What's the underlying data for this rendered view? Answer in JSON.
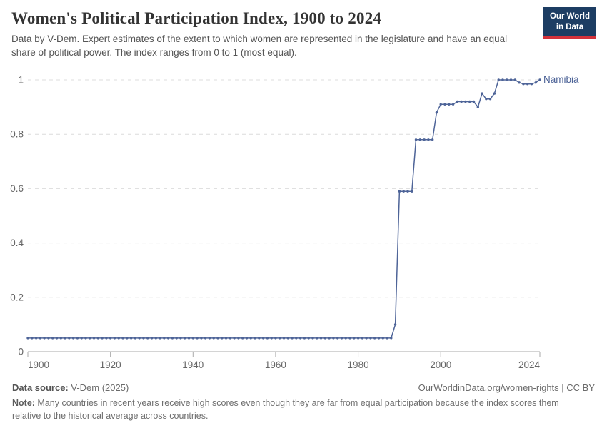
{
  "logo": {
    "line1": "Our World",
    "line2": "in Data",
    "bg_color": "#1d3d63",
    "stripe_color": "#d4323b"
  },
  "footer": {
    "source_label": "Data source:",
    "source_value": " V-Dem (2025)",
    "link_text": "OurWorldinData.org/women-rights | CC BY",
    "note_label": "Note:",
    "note_text": " Many countries in recent years receive high scores even though they are far from equal participation because the index scores them relative to the historical average across countries."
  },
  "chart_data": {
    "type": "line",
    "title": "Women's Political Participation Index, 1900 to 2024",
    "subtitle": "Data by V-Dem. Expert estimates of the extent to which women are represented in the legislature and have an equal share of political power. The index ranges from 0 to 1 (most equal).",
    "xlim": [
      1900,
      2024
    ],
    "ylim": [
      0,
      1
    ],
    "grid": "dashed-horizontal",
    "legend_position": "end-of-line-label",
    "x_ticks": [
      1900,
      1920,
      1940,
      1960,
      1980,
      2000,
      2024
    ],
    "y_ticks": [
      {
        "value": 0,
        "label": "0"
      },
      {
        "value": 0.2,
        "label": "0.2"
      },
      {
        "value": 0.4,
        "label": "0.4"
      },
      {
        "value": 0.6,
        "label": "0.6"
      },
      {
        "value": 0.8,
        "label": "0.8"
      },
      {
        "value": 1,
        "label": "1"
      }
    ],
    "series": [
      {
        "name": "Namibia",
        "color": "#4e6498",
        "start_year": 1900,
        "values": [
          0.05,
          0.05,
          0.05,
          0.05,
          0.05,
          0.05,
          0.05,
          0.05,
          0.05,
          0.05,
          0.05,
          0.05,
          0.05,
          0.05,
          0.05,
          0.05,
          0.05,
          0.05,
          0.05,
          0.05,
          0.05,
          0.05,
          0.05,
          0.05,
          0.05,
          0.05,
          0.05,
          0.05,
          0.05,
          0.05,
          0.05,
          0.05,
          0.05,
          0.05,
          0.05,
          0.05,
          0.05,
          0.05,
          0.05,
          0.05,
          0.05,
          0.05,
          0.05,
          0.05,
          0.05,
          0.05,
          0.05,
          0.05,
          0.05,
          0.05,
          0.05,
          0.05,
          0.05,
          0.05,
          0.05,
          0.05,
          0.05,
          0.05,
          0.05,
          0.05,
          0.05,
          0.05,
          0.05,
          0.05,
          0.05,
          0.05,
          0.05,
          0.05,
          0.05,
          0.05,
          0.05,
          0.05,
          0.05,
          0.05,
          0.05,
          0.05,
          0.05,
          0.05,
          0.05,
          0.05,
          0.05,
          0.05,
          0.05,
          0.05,
          0.05,
          0.05,
          0.05,
          0.05,
          0.05,
          0.1,
          0.59,
          0.59,
          0.59,
          0.59,
          0.78,
          0.78,
          0.78,
          0.78,
          0.78,
          0.88,
          0.91,
          0.91,
          0.91,
          0.91,
          0.92,
          0.92,
          0.92,
          0.92,
          0.92,
          0.9,
          0.95,
          0.93,
          0.93,
          0.95,
          1,
          1,
          1,
          1,
          1,
          0.99,
          0.985,
          0.985,
          0.985,
          0.99,
          1
        ]
      }
    ],
    "style": {
      "gridline_color": "#dcdcdc",
      "axis_color": "#a9a9a9",
      "tick_label_color": "#666666"
    }
  }
}
